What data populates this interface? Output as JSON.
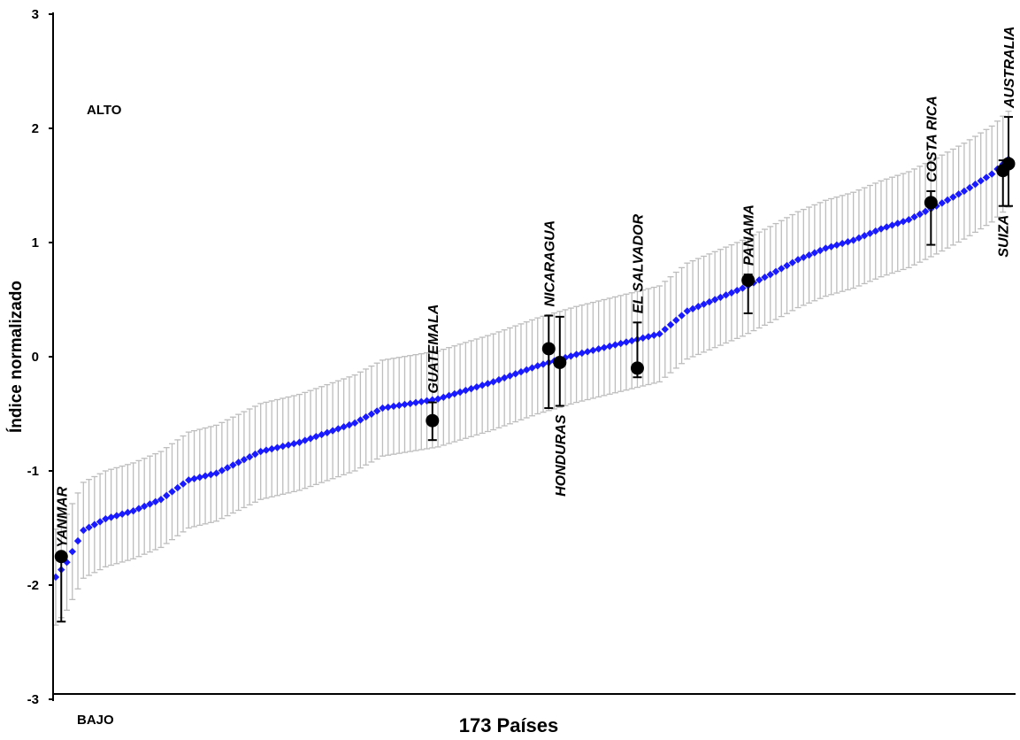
{
  "chart_data": {
    "type": "scatter",
    "title": "",
    "xlabel": "173 Países",
    "ylabel": "Índice normalizado",
    "ylim": [
      -3,
      3
    ],
    "yticks": [
      "3",
      "2",
      "1",
      "0",
      "-1",
      "-2",
      "-3"
    ],
    "grid": false,
    "legend": "none",
    "annotations": {
      "high": "ALTO",
      "low": "BAJO"
    },
    "colors": {
      "series": "#1a1aff",
      "error_bar": "#bdbdbd",
      "highlight": "#000000",
      "axis": "#000000"
    },
    "series": [
      {
        "count": 173,
        "y_start": -1.93,
        "y_end": 1.73,
        "error_half_width": 0.42,
        "anchors": [
          [
            1,
            -1.93
          ],
          [
            3,
            -1.8
          ],
          [
            6,
            -1.52
          ],
          [
            10,
            -1.42
          ],
          [
            15,
            -1.35
          ],
          [
            20,
            -1.25
          ],
          [
            25,
            -1.08
          ],
          [
            30,
            -1.02
          ],
          [
            38,
            -0.83
          ],
          [
            45,
            -0.75
          ],
          [
            55,
            -0.58
          ],
          [
            60,
            -0.45
          ],
          [
            70,
            -0.37
          ],
          [
            80,
            -0.22
          ],
          [
            88,
            -0.08
          ],
          [
            95,
            0.02
          ],
          [
            100,
            0.08
          ],
          [
            105,
            0.14
          ],
          [
            110,
            0.2
          ],
          [
            115,
            0.4
          ],
          [
            120,
            0.5
          ],
          [
            125,
            0.6
          ],
          [
            130,
            0.72
          ],
          [
            135,
            0.85
          ],
          [
            140,
            0.95
          ],
          [
            145,
            1.02
          ],
          [
            150,
            1.12
          ],
          [
            155,
            1.2
          ],
          [
            160,
            1.32
          ],
          [
            165,
            1.45
          ],
          [
            170,
            1.6
          ],
          [
            173,
            1.73
          ]
        ]
      }
    ],
    "highlighted": [
      {
        "country": "MYANMAR",
        "label": "YANMAR",
        "x": 2,
        "y": -1.75,
        "low": -2.32,
        "high": -1.75,
        "label_side": "above"
      },
      {
        "country": "GUATEMALA",
        "label": "GUATEMALA",
        "x": 69,
        "y": -0.56,
        "low": -0.73,
        "high": -0.4,
        "label_side": "above"
      },
      {
        "country": "NICARAGUA",
        "label": "NICARAGUA",
        "x": 90,
        "y": 0.07,
        "low": -0.45,
        "high": 0.36,
        "label_side": "above"
      },
      {
        "country": "HONDURAS",
        "label": "HONDURAS",
        "x": 92,
        "y": -0.05,
        "low": -0.43,
        "high": 0.35,
        "label_side": "below"
      },
      {
        "country": "EL SALVADOR",
        "label": "EL SALVADOR",
        "x": 106,
        "y": -0.1,
        "low": -0.18,
        "high": 0.3,
        "label_side": "above"
      },
      {
        "country": "PANAMA",
        "label": "PANAMA",
        "x": 126,
        "y": 0.67,
        "low": 0.38,
        "high": 0.72,
        "label_side": "above"
      },
      {
        "country": "COSTA RICA",
        "label": "COSTA RICA",
        "x": 159,
        "y": 1.35,
        "low": 0.98,
        "high": 1.45,
        "label_side": "above"
      },
      {
        "country": "SUIZA",
        "label": "SUIZA",
        "x": 172,
        "y": 1.63,
        "low": 1.32,
        "high": 1.72,
        "label_side": "below"
      },
      {
        "country": "AUSTRALIA",
        "label": "AUSTRALIA",
        "x": 173,
        "y": 1.69,
        "low": 1.32,
        "high": 2.1,
        "label_side": "above"
      }
    ]
  }
}
